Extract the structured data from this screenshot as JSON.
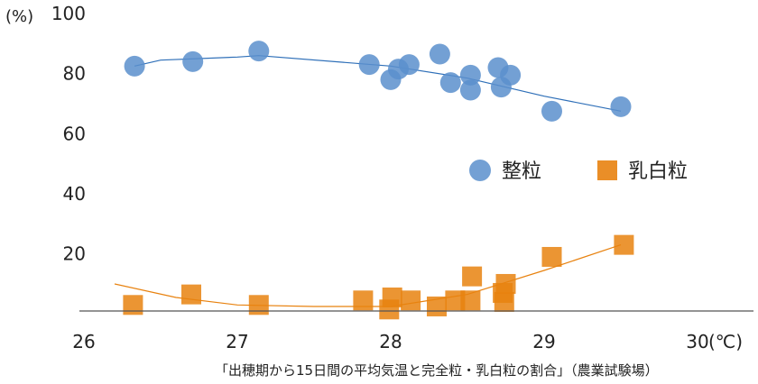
{
  "chart_data": {
    "type": "scatter",
    "title": "",
    "caption": "「出穂期から15日間の平均気温と完全粒・乳白粒の割合」（農業試験場）",
    "y_unit": "(%)",
    "x_unit": "(℃)",
    "x_ticks": [
      "26",
      "27",
      "28",
      "29",
      "30"
    ],
    "y_ticks": [
      "20",
      "40",
      "60",
      "80",
      "100"
    ],
    "xlim": [
      26,
      30
    ],
    "ylim": [
      1.5,
      100
    ],
    "grid": false,
    "legend_position": "center-right",
    "series": [
      {
        "name": "整粒",
        "marker": "circle",
        "color": "#5b8fcc",
        "points": [
          {
            "x": 26.33,
            "y": 82.5
          },
          {
            "x": 26.71,
            "y": 84.0
          },
          {
            "x": 27.14,
            "y": 87.5
          },
          {
            "x": 27.86,
            "y": 83.0
          },
          {
            "x": 28.0,
            "y": 78.0
          },
          {
            "x": 28.05,
            "y": 81.5
          },
          {
            "x": 28.12,
            "y": 83.0
          },
          {
            "x": 28.32,
            "y": 86.5
          },
          {
            "x": 28.39,
            "y": 77.0
          },
          {
            "x": 28.52,
            "y": 79.5
          },
          {
            "x": 28.52,
            "y": 74.5
          },
          {
            "x": 28.7,
            "y": 82.0
          },
          {
            "x": 28.72,
            "y": 75.5
          },
          {
            "x": 28.78,
            "y": 79.5
          },
          {
            "x": 29.05,
            "y": 67.5
          },
          {
            "x": 29.5,
            "y": 69.0
          }
        ],
        "trend": [
          {
            "x": 26.33,
            "y": 82.5
          },
          {
            "x": 26.5,
            "y": 84.5
          },
          {
            "x": 27.0,
            "y": 85.5
          },
          {
            "x": 27.14,
            "y": 86.0
          },
          {
            "x": 28.0,
            "y": 82.5
          },
          {
            "x": 28.5,
            "y": 78.5
          },
          {
            "x": 29.0,
            "y": 72.5
          },
          {
            "x": 29.5,
            "y": 67.5
          }
        ]
      },
      {
        "name": "乳白粒",
        "marker": "square",
        "color": "#e8820f",
        "points": [
          {
            "x": 26.32,
            "y": 3.0
          },
          {
            "x": 26.7,
            "y": 6.5
          },
          {
            "x": 27.14,
            "y": 3.0
          },
          {
            "x": 27.82,
            "y": 4.5
          },
          {
            "x": 27.99,
            "y": 1.5
          },
          {
            "x": 28.01,
            "y": 5.5
          },
          {
            "x": 28.13,
            "y": 4.5
          },
          {
            "x": 28.3,
            "y": 2.5
          },
          {
            "x": 28.42,
            "y": 4.5
          },
          {
            "x": 28.52,
            "y": 4.5
          },
          {
            "x": 28.53,
            "y": 12.5
          },
          {
            "x": 28.73,
            "y": 7.0
          },
          {
            "x": 28.74,
            "y": 4.0
          },
          {
            "x": 28.75,
            "y": 10.0
          },
          {
            "x": 29.05,
            "y": 19.0
          },
          {
            "x": 29.52,
            "y": 23.0
          }
        ],
        "trend": [
          {
            "x": 26.2,
            "y": 10.0
          },
          {
            "x": 26.6,
            "y": 5.5
          },
          {
            "x": 27.0,
            "y": 3.0
          },
          {
            "x": 27.5,
            "y": 2.5
          },
          {
            "x": 28.0,
            "y": 2.5
          },
          {
            "x": 28.5,
            "y": 6.5
          },
          {
            "x": 29.0,
            "y": 14.5
          },
          {
            "x": 29.5,
            "y": 23.0
          }
        ]
      }
    ]
  }
}
